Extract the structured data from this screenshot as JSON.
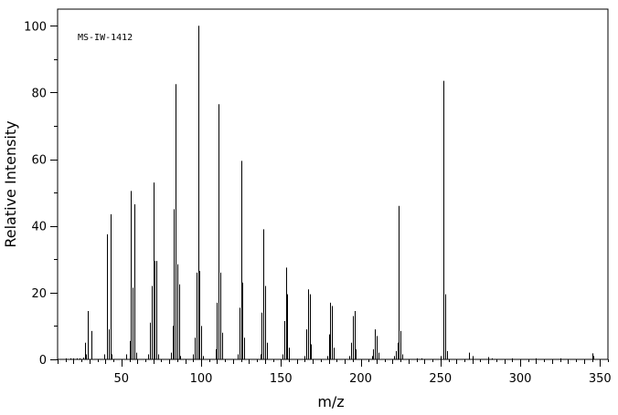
{
  "chart_data": {
    "type": "bar",
    "title": "",
    "annotation": "MS-IW-1412",
    "xlabel": "m/z",
    "ylabel": "Relative Intensity",
    "xlim": [
      10,
      355
    ],
    "ylim": [
      0,
      105
    ],
    "x_ticks": [
      50,
      100,
      150,
      200,
      250,
      300,
      350
    ],
    "y_ticks": [
      0,
      20,
      40,
      60,
      80,
      100
    ],
    "grid": false,
    "peaks": [
      {
        "mz": 15,
        "intensity": 0.3
      },
      {
        "mz": 18,
        "intensity": 0.3
      },
      {
        "mz": 20,
        "intensity": 0.3
      },
      {
        "mz": 22,
        "intensity": 0.3
      },
      {
        "mz": 24,
        "intensity": 0.3
      },
      {
        "mz": 26,
        "intensity": 0.5
      },
      {
        "mz": 27,
        "intensity": 5.0
      },
      {
        "mz": 28,
        "intensity": 1.5
      },
      {
        "mz": 29,
        "intensity": 14.5
      },
      {
        "mz": 31,
        "intensity": 8.5
      },
      {
        "mz": 39,
        "intensity": 1.5
      },
      {
        "mz": 41,
        "intensity": 37.5
      },
      {
        "mz": 42,
        "intensity": 9.0
      },
      {
        "mz": 43,
        "intensity": 43.5
      },
      {
        "mz": 44,
        "intensity": 1.5
      },
      {
        "mz": 53,
        "intensity": 1.5
      },
      {
        "mz": 55,
        "intensity": 5.5
      },
      {
        "mz": 56,
        "intensity": 50.5
      },
      {
        "mz": 57,
        "intensity": 21.5
      },
      {
        "mz": 58,
        "intensity": 46.5
      },
      {
        "mz": 59,
        "intensity": 2.0
      },
      {
        "mz": 67,
        "intensity": 1.5
      },
      {
        "mz": 68,
        "intensity": 11.0
      },
      {
        "mz": 69,
        "intensity": 22.0
      },
      {
        "mz": 70,
        "intensity": 53.0
      },
      {
        "mz": 71,
        "intensity": 29.5
      },
      {
        "mz": 72,
        "intensity": 29.5
      },
      {
        "mz": 73,
        "intensity": 1.5
      },
      {
        "mz": 81,
        "intensity": 2.0
      },
      {
        "mz": 82,
        "intensity": 10.0
      },
      {
        "mz": 83,
        "intensity": 45.0
      },
      {
        "mz": 84,
        "intensity": 82.5
      },
      {
        "mz": 85,
        "intensity": 28.5
      },
      {
        "mz": 86,
        "intensity": 22.5
      },
      {
        "mz": 87,
        "intensity": 1.0
      },
      {
        "mz": 95,
        "intensity": 1.5
      },
      {
        "mz": 96,
        "intensity": 6.5
      },
      {
        "mz": 97,
        "intensity": 26.0
      },
      {
        "mz": 98,
        "intensity": 100.0
      },
      {
        "mz": 99,
        "intensity": 26.5
      },
      {
        "mz": 100,
        "intensity": 10.0
      },
      {
        "mz": 101,
        "intensity": 1.0
      },
      {
        "mz": 109,
        "intensity": 3.0
      },
      {
        "mz": 110,
        "intensity": 17.0
      },
      {
        "mz": 111,
        "intensity": 76.5
      },
      {
        "mz": 112,
        "intensity": 26.0
      },
      {
        "mz": 113,
        "intensity": 8.0
      },
      {
        "mz": 123,
        "intensity": 1.5
      },
      {
        "mz": 124,
        "intensity": 15.5
      },
      {
        "mz": 125,
        "intensity": 59.5
      },
      {
        "mz": 126,
        "intensity": 23.0
      },
      {
        "mz": 127,
        "intensity": 6.5
      },
      {
        "mz": 137,
        "intensity": 1.5
      },
      {
        "mz": 138,
        "intensity": 14.0
      },
      {
        "mz": 139,
        "intensity": 39.0
      },
      {
        "mz": 140,
        "intensity": 22.0
      },
      {
        "mz": 141,
        "intensity": 5.0
      },
      {
        "mz": 151,
        "intensity": 1.5
      },
      {
        "mz": 152,
        "intensity": 11.5
      },
      {
        "mz": 153,
        "intensity": 27.5
      },
      {
        "mz": 154,
        "intensity": 19.5
      },
      {
        "mz": 155,
        "intensity": 3.5
      },
      {
        "mz": 165,
        "intensity": 1.0
      },
      {
        "mz": 166,
        "intensity": 9.0
      },
      {
        "mz": 167,
        "intensity": 21.0
      },
      {
        "mz": 168,
        "intensity": 19.5
      },
      {
        "mz": 169,
        "intensity": 4.5
      },
      {
        "mz": 179,
        "intensity": 1.0
      },
      {
        "mz": 180,
        "intensity": 7.5
      },
      {
        "mz": 181,
        "intensity": 17.0
      },
      {
        "mz": 182,
        "intensity": 16.0
      },
      {
        "mz": 183,
        "intensity": 3.5
      },
      {
        "mz": 193,
        "intensity": 1.0
      },
      {
        "mz": 194,
        "intensity": 5.0
      },
      {
        "mz": 195,
        "intensity": 13.0
      },
      {
        "mz": 196,
        "intensity": 14.5
      },
      {
        "mz": 197,
        "intensity": 3.0
      },
      {
        "mz": 207,
        "intensity": 1.0
      },
      {
        "mz": 208,
        "intensity": 3.0
      },
      {
        "mz": 209,
        "intensity": 9.0
      },
      {
        "mz": 210,
        "intensity": 7.0
      },
      {
        "mz": 211,
        "intensity": 2.0
      },
      {
        "mz": 221,
        "intensity": 1.0
      },
      {
        "mz": 222,
        "intensity": 2.5
      },
      {
        "mz": 223,
        "intensity": 5.0
      },
      {
        "mz": 224,
        "intensity": 46.0
      },
      {
        "mz": 225,
        "intensity": 8.5
      },
      {
        "mz": 226,
        "intensity": 1.5
      },
      {
        "mz": 235,
        "intensity": 0.3
      },
      {
        "mz": 238,
        "intensity": 0.3
      },
      {
        "mz": 250,
        "intensity": 1.0
      },
      {
        "mz": 252,
        "intensity": 83.5
      },
      {
        "mz": 253,
        "intensity": 19.5
      },
      {
        "mz": 254,
        "intensity": 2.5
      },
      {
        "mz": 268,
        "intensity": 2.0
      },
      {
        "mz": 270,
        "intensity": 1.0
      },
      {
        "mz": 280,
        "intensity": 0.7
      },
      {
        "mz": 282,
        "intensity": 0.3
      },
      {
        "mz": 295,
        "intensity": 0.3
      },
      {
        "mz": 310,
        "intensity": 0.3
      },
      {
        "mz": 325,
        "intensity": 0.3
      },
      {
        "mz": 345,
        "intensity": 1.8
      },
      {
        "mz": 346,
        "intensity": 1.0
      }
    ]
  }
}
